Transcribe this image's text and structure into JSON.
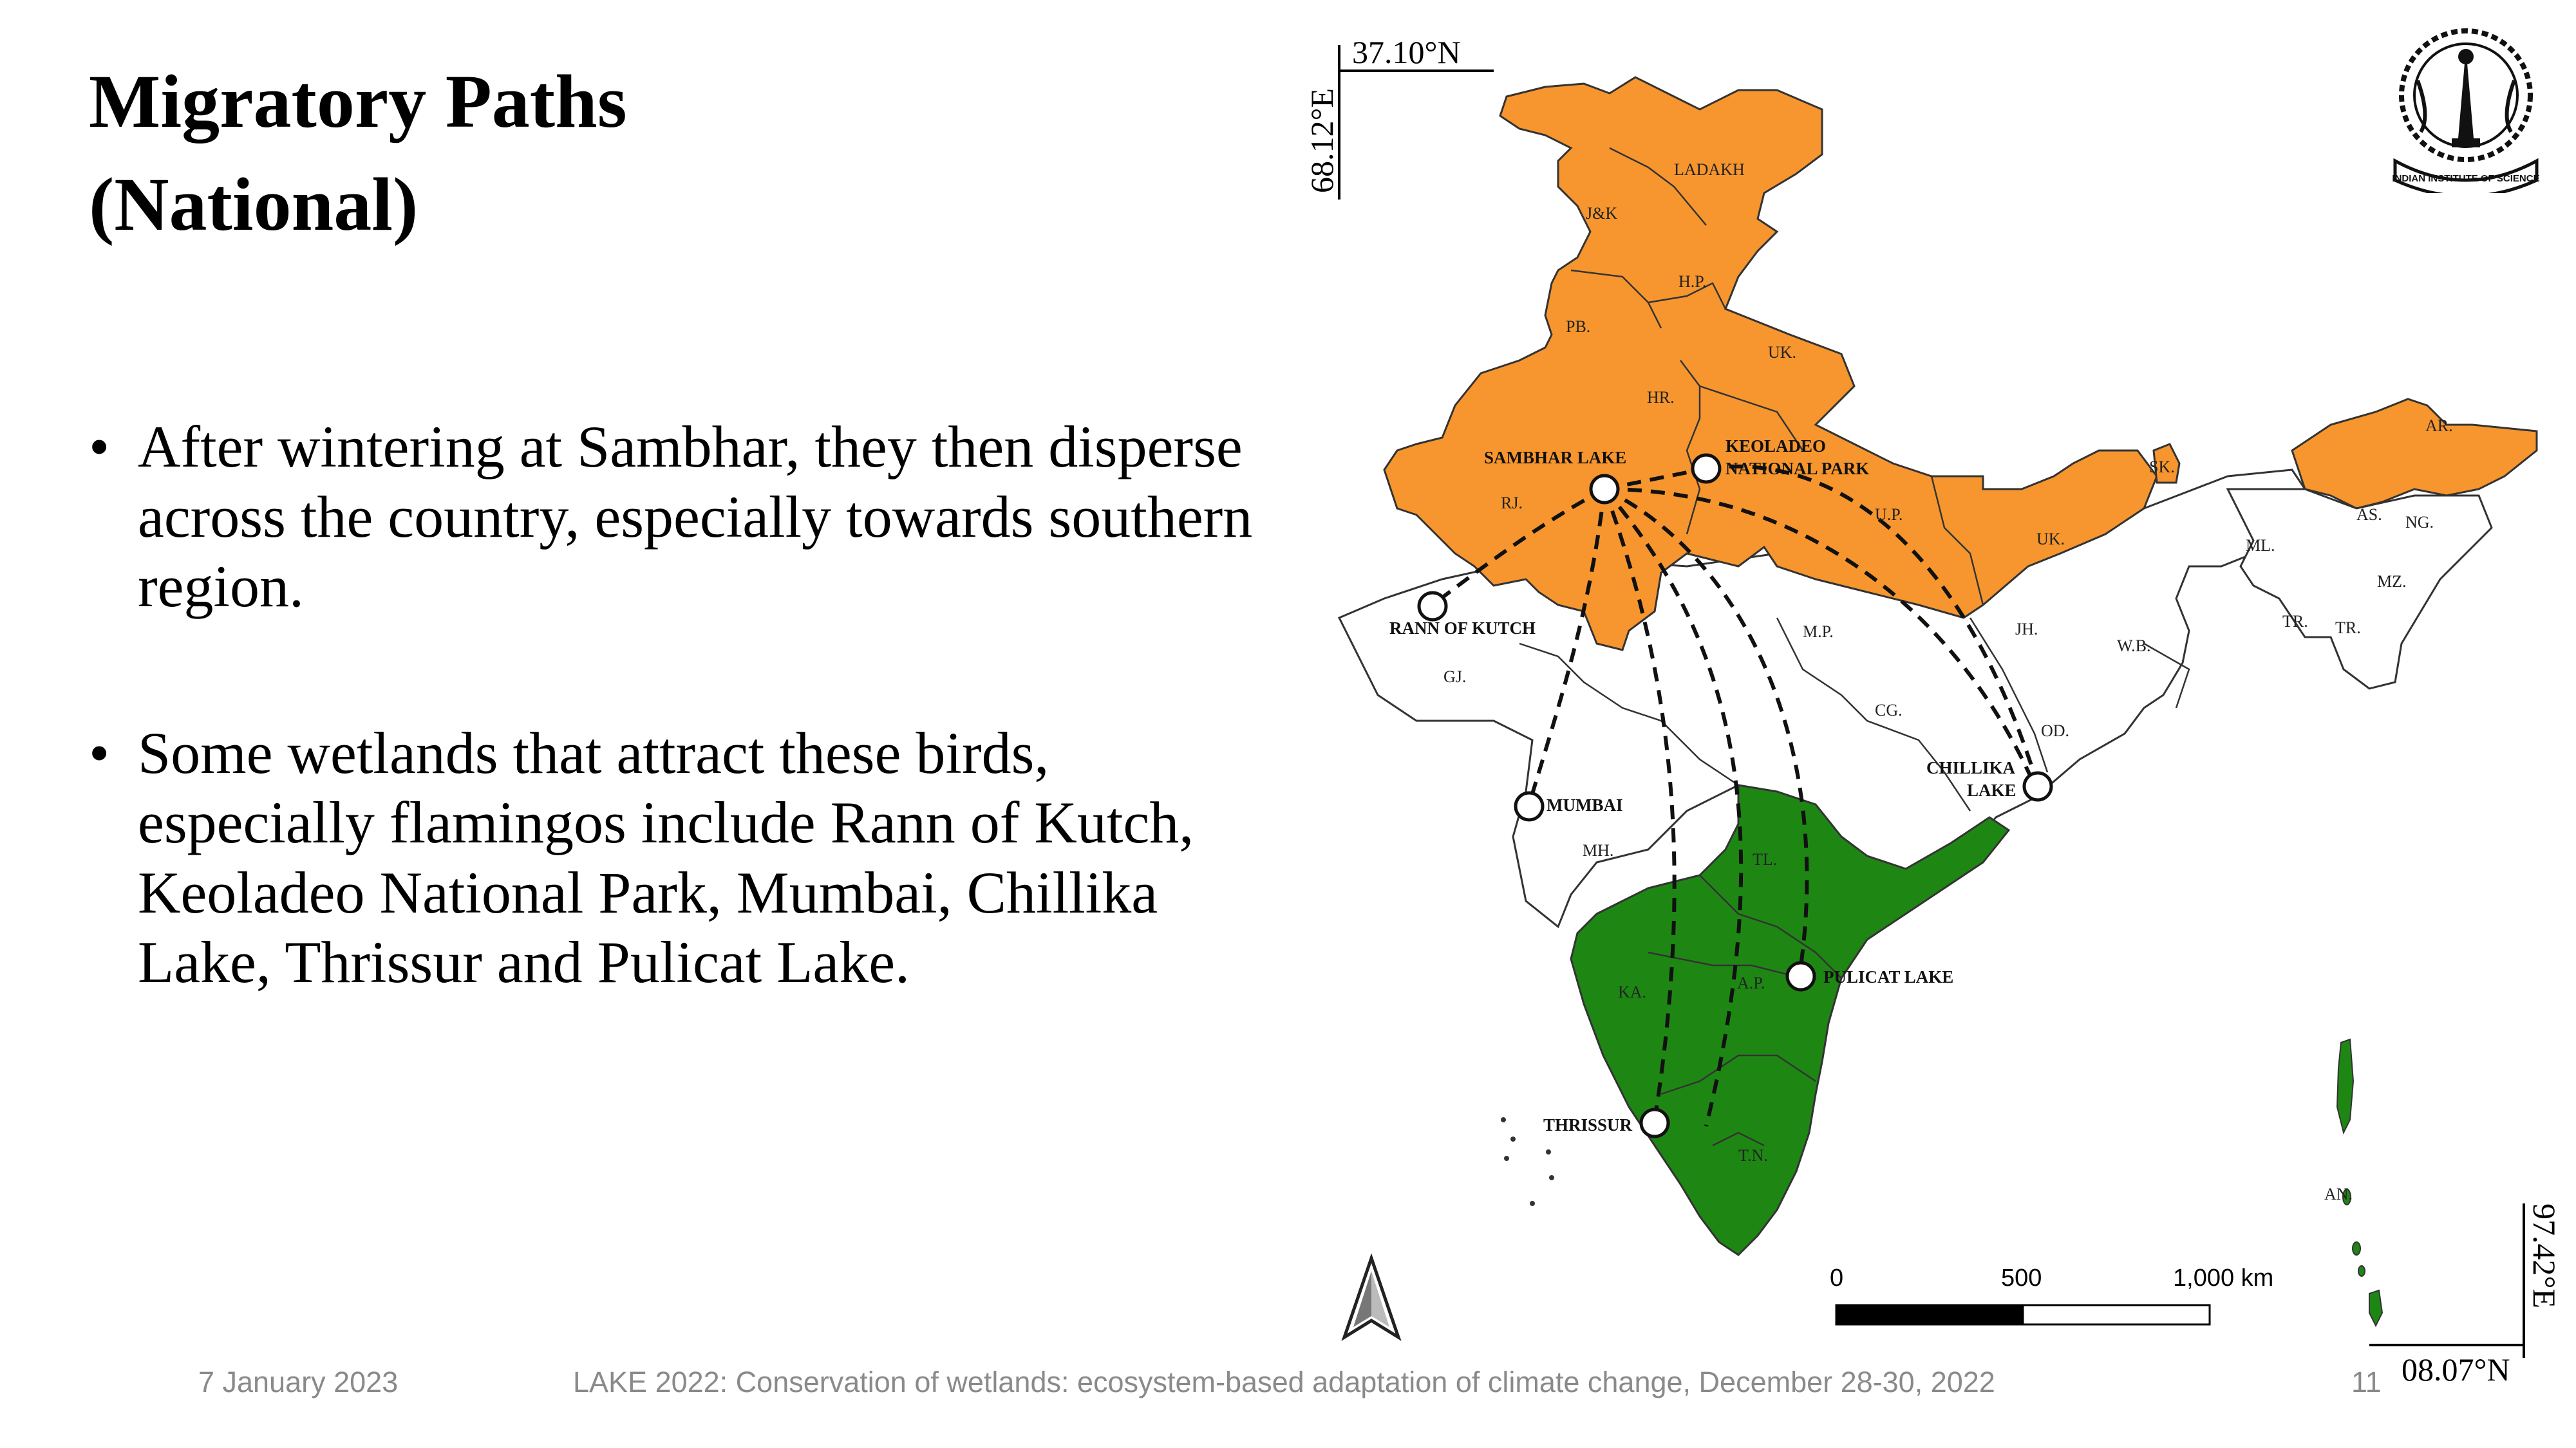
{
  "slide": {
    "title": "Migratory Paths\n(National)",
    "bullets": [
      "After wintering at Sambhar, they then disperse across the country, especially towards southern region.",
      "Some wetlands that attract these birds, especially flamingos include Rann of Kutch, Keoladeo National Park, Mumbai, Chillika Lake, Thrissur and Pulicat Lake."
    ]
  },
  "map": {
    "colors": {
      "north": "#F7962E",
      "south": "#1E8714",
      "central": "#FFFFFF",
      "border": "#333333"
    },
    "coords": {
      "top_lat": "37.10°N",
      "left_lon": "68.12°E",
      "right_lon": "97.42°E",
      "bottom_lat": "08.07°N"
    },
    "sites": {
      "sambhar": "SAMBHAR LAKE",
      "keoladeo_1": "KEOLADEO",
      "keoladeo_2": "NATIONAL PARK",
      "rann": "RANN OF KUTCH",
      "mumbai": "MUMBAI",
      "chillika_1": "CHILLIKA",
      "chillika_2": "LAKE",
      "pulicat": "PULICAT LAKE",
      "thrissur": "THRISSUR"
    },
    "states": {
      "ladakh": "LADAKH",
      "jk": "J&K",
      "hp": "H.P.",
      "pb": "PB.",
      "uk1": "UK.",
      "hr": "HR.",
      "rj": "RJ.",
      "up": "U.P.",
      "uk2": "UK.",
      "sk": "SK.",
      "ar": "AR.",
      "as": "AS.",
      "ng": "NG.",
      "ml": "ML.",
      "mz": "MZ.",
      "tr1": "TR.",
      "tr2": "TR.",
      "mp": "M.P.",
      "gj": "GJ.",
      "jh": "JH.",
      "wb": "W.B.",
      "cg": "CG.",
      "od": "OD.",
      "mh": "MH.",
      "tl": "TL.",
      "ka": "KA.",
      "ap": "A.P.",
      "tn": "T.N.",
      "an": "AN."
    },
    "scale": {
      "tick_0": "0",
      "tick_1": "500",
      "tick_2": "1,000 km"
    },
    "north_arrow": "north-arrow-icon"
  },
  "logo": {
    "text": "INDIAN INSTITUTE OF SCIENCE",
    "icon": "iisc-emblem-icon"
  },
  "footer": {
    "date": "7 January 2023",
    "event": "LAKE 2022: Conservation of wetlands: ecosystem-based adaptation of climate change, December 28-30, 2022",
    "page": "11"
  }
}
